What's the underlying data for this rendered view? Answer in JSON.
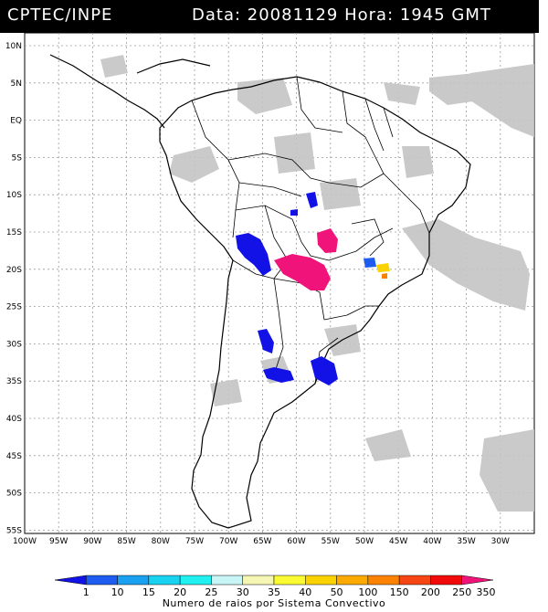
{
  "header": {
    "agency": "CPTEC/INPE",
    "datetime": "Data: 20081129 Hora: 1945 GMT"
  },
  "axes": {
    "lat_labels": [
      "10N",
      "5N",
      "EQ",
      "5S",
      "10S",
      "15S",
      "20S",
      "25S",
      "30S",
      "35S",
      "40S",
      "45S",
      "50S",
      "55S"
    ],
    "lon_labels": [
      "100W",
      "95W",
      "90W",
      "85W",
      "80W",
      "75W",
      "70W",
      "65W",
      "60W",
      "55W",
      "50W",
      "45W",
      "40W",
      "35W",
      "30W"
    ]
  },
  "colorbar": {
    "labels": [
      "1",
      "10",
      "15",
      "20",
      "25",
      "30",
      "35",
      "40",
      "50",
      "100",
      "150",
      "200",
      "250",
      "350"
    ],
    "colors": [
      "#1212e6",
      "#1e5cf0",
      "#19a0f0",
      "#19d2f0",
      "#21f0f0",
      "#c8f5f5",
      "#f5f5b4",
      "#fafa32",
      "#fad200",
      "#faaa00",
      "#fa8200",
      "#f54614",
      "#f00a0a",
      "#f0147a"
    ],
    "title": "Numero de raios por Sistema Convectivo"
  },
  "style": {
    "cloud_color": "#c4c4c4",
    "coast_color": "#000000",
    "grid_color": "#9a9a9a"
  }
}
